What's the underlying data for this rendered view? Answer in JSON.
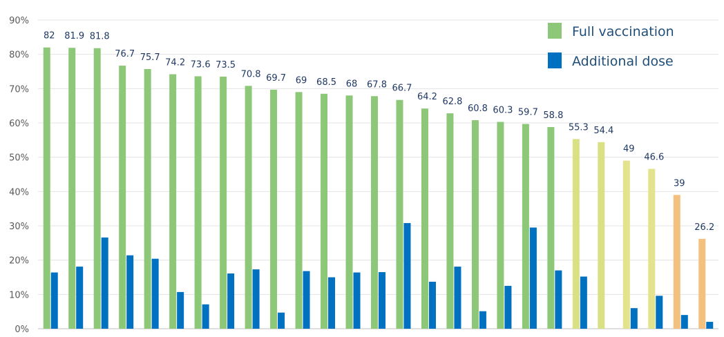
{
  "chart_data": {
    "type": "bar",
    "title": "",
    "xlabel": "",
    "ylabel": "",
    "ylim": [
      0,
      90
    ],
    "y_ticks": [
      "0%",
      "10%",
      "20%",
      "30%",
      "40%",
      "50%",
      "60%",
      "70%",
      "80%",
      "90%"
    ],
    "grid": true,
    "legend_position": "top-right",
    "categories": [
      "",
      "",
      "",
      "",
      "",
      "",
      "",
      "",
      "",
      "",
      "",
      "",
      "",
      "",
      "",
      "",
      "",
      "",
      "",
      "",
      "",
      "",
      "",
      "",
      "",
      "",
      ""
    ],
    "series": [
      {
        "name": "Full vaccination",
        "color": "#8dc878",
        "values": [
          82,
          81.9,
          81.8,
          76.7,
          75.7,
          74.2,
          73.6,
          73.5,
          70.8,
          69.7,
          69,
          68.5,
          68,
          67.8,
          66.7,
          64.2,
          62.8,
          60.8,
          60.3,
          59.7,
          58.8,
          55.3,
          54.4,
          49,
          46.6,
          39,
          26.2
        ],
        "labels": [
          "82",
          "81.9",
          "81.8",
          "76.7",
          "75.7",
          "74.2",
          "73.6",
          "73.5",
          "70.8",
          "69.7",
          "69",
          "68.5",
          "68",
          "67.8",
          "66.7",
          "64.2",
          "62.8",
          "60.8",
          "60.3",
          "59.7",
          "58.8",
          "55.3",
          "54.4",
          "49",
          "46.6",
          "39",
          "26.2"
        ],
        "bar_colors": [
          "#8dc878",
          "#8dc878",
          "#8dc878",
          "#8dc878",
          "#8dc878",
          "#8dc878",
          "#8dc878",
          "#8dc878",
          "#8dc878",
          "#8dc878",
          "#8dc878",
          "#8dc878",
          "#8dc878",
          "#8dc878",
          "#8dc878",
          "#8dc878",
          "#8dc878",
          "#8dc878",
          "#8dc878",
          "#8dc878",
          "#8dc878",
          "#d9e184",
          "#d9e184",
          "#e3e38d",
          "#e3e38d",
          "#f4c07e",
          "#f4c07e"
        ]
      },
      {
        "name": "Additional dose",
        "color": "#0070c0",
        "values": [
          16.4,
          18.1,
          26.6,
          21.4,
          20.4,
          10.7,
          7.1,
          16.1,
          17.3,
          4.7,
          16.8,
          15.0,
          16.4,
          16.5,
          30.8,
          13.7,
          18.1,
          5.1,
          12.5,
          29.5,
          17.0,
          15.2,
          0,
          6.0,
          9.6,
          4.0,
          2.0
        ]
      }
    ]
  }
}
